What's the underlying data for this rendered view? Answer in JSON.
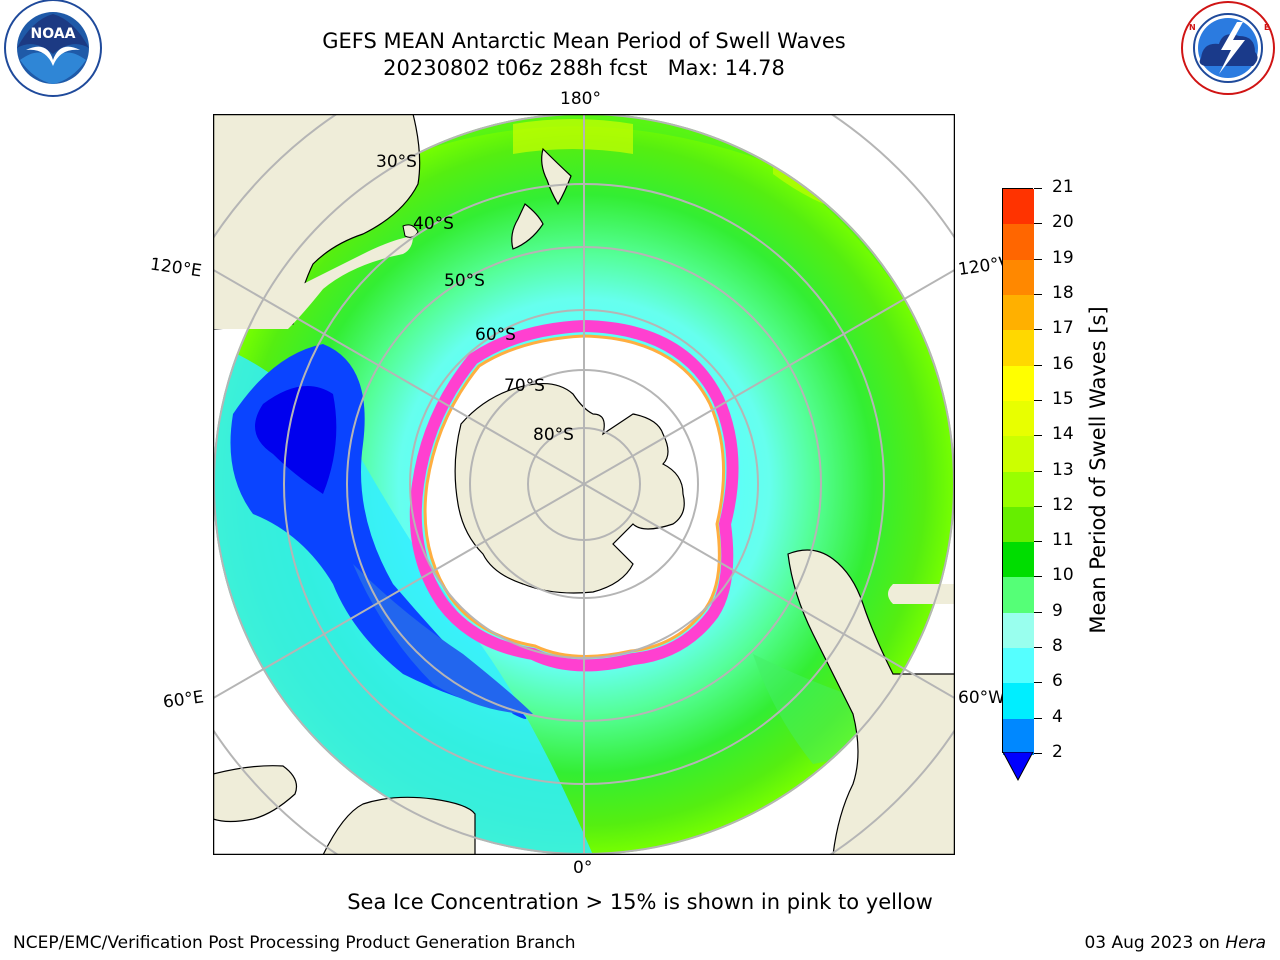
{
  "title": {
    "line1": "GEFS MEAN Antarctic Mean Period of Swell Waves",
    "line2": "20230802 t06z 288h fcst   Max: 14.78"
  },
  "logos": {
    "left": {
      "text": "NOAA",
      "ring_text": "NATIONAL OCEANIC AND ATMOSPHERIC ADMINISTRATION · U.S. DEPARTMENT OF COMMERCE",
      "icon": "noaa-logo"
    },
    "right": {
      "ring_text": "NATIONAL WEATHER SERVICE",
      "icon": "nws-logo"
    }
  },
  "map": {
    "projection": "south-polar-stereographic",
    "lon_labels": {
      "top": "180°",
      "bottom": "0°",
      "left_upper": "120°E",
      "left_lower": "60°E",
      "right_upper": "120°W",
      "right_lower": "60°W"
    },
    "lat_labels": [
      "30°S",
      "40°S",
      "50°S",
      "60°S",
      "70°S",
      "80°S"
    ],
    "colors": {
      "land": "#efedd9",
      "ice_free_ocean": "#ffffff",
      "grid": "#b5b5b5",
      "sea_ice_edge": "#ff40d0",
      "sea_ice_inner": "#ff9a30"
    }
  },
  "colorbar": {
    "label": "Mean Period of Swell Waves [s]",
    "ticks": [
      "21",
      "20",
      "19",
      "18",
      "17",
      "16",
      "15",
      "14",
      "13",
      "12",
      "11",
      "10",
      "9",
      "8",
      "6",
      "4",
      "2"
    ],
    "colors": [
      "#ff0000",
      "#ff3300",
      "#ff6600",
      "#ff8800",
      "#ffb000",
      "#ffd800",
      "#ffff00",
      "#e8ff00",
      "#ccff00",
      "#99ff00",
      "#66ee00",
      "#00dd00",
      "#55ff77",
      "#99ffee",
      "#55ffff",
      "#00eeff",
      "#0088ff",
      "#0000ff"
    ]
  },
  "note": "Sea Ice Concentration > 15% is shown in pink to yellow",
  "footer": {
    "credit": "NCEP/EMC/Verification Post Processing Product Generation Branch",
    "date": "03 Aug 2023 on ",
    "machine": "Hera"
  }
}
